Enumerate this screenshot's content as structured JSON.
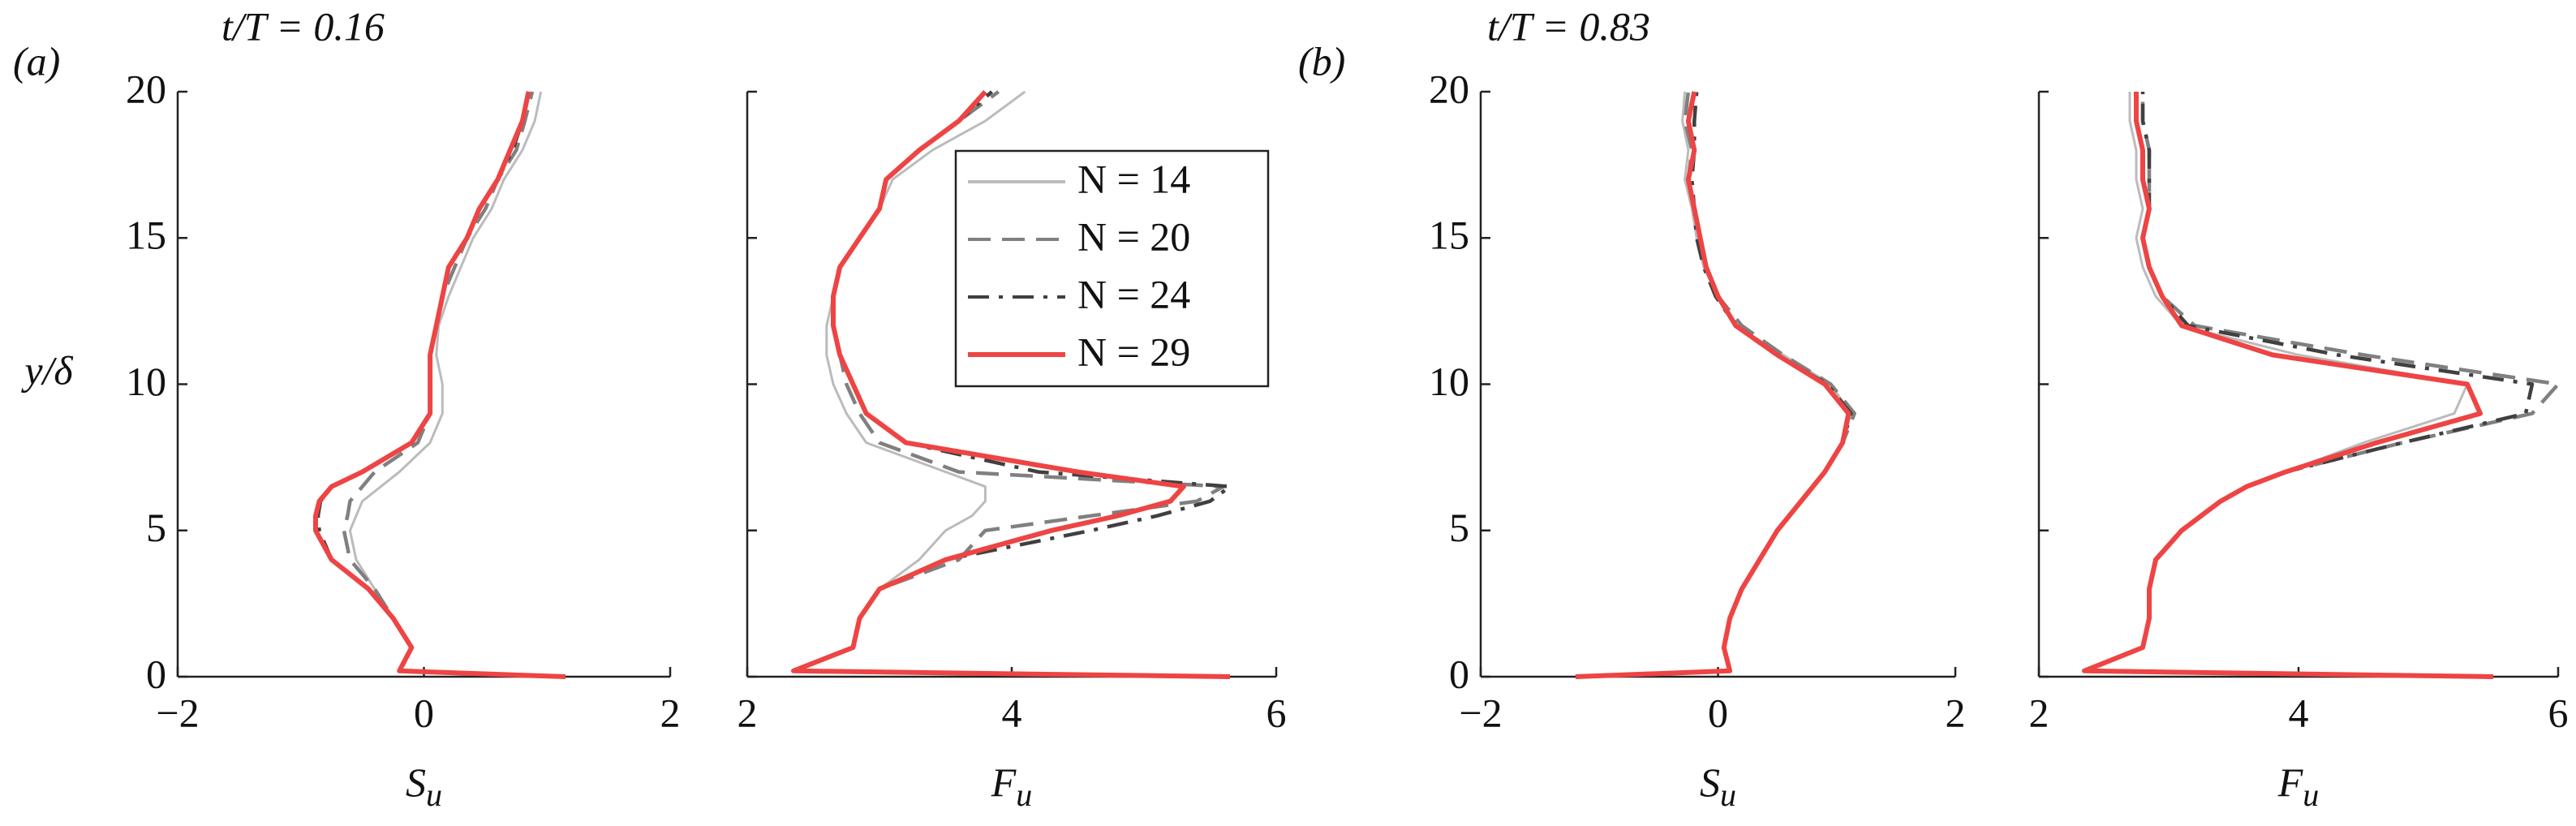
{
  "chart_data": [
    {
      "type": "line",
      "panel_label": "(a)",
      "title": "t/T = 0.16",
      "ylabel": "y/δ",
      "xlabel": "S",
      "xlabel_subscript": "u",
      "xlim": [
        -2,
        2
      ],
      "xticks": [
        {
          "value": -2,
          "label": "−2"
        },
        0,
        2
      ],
      "ylim": [
        0,
        20
      ],
      "yticks": [
        0,
        5,
        10,
        15,
        20
      ],
      "show_ytick_labels": true,
      "y": [
        0,
        0.2,
        1,
        2,
        3,
        4,
        5,
        5.5,
        6,
        6.5,
        7,
        8,
        9,
        10,
        11,
        12,
        13,
        14,
        15,
        16,
        17,
        18,
        19,
        20
      ],
      "series": [
        {
          "name": "N = 14",
          "color": "#bbbbbb",
          "linestyle": "solid",
          "values": [
            1.15,
            -0.2,
            -0.1,
            -0.25,
            -0.4,
            -0.55,
            -0.6,
            -0.55,
            -0.5,
            -0.35,
            -0.2,
            0.05,
            0.15,
            0.15,
            0.1,
            0.12,
            0.2,
            0.3,
            0.4,
            0.55,
            0.65,
            0.8,
            0.9,
            0.95
          ]
        },
        {
          "name": "N = 20",
          "color": "#808080",
          "linestyle": "dashed",
          "values": [
            1.15,
            -0.2,
            -0.1,
            -0.25,
            -0.4,
            -0.6,
            -0.65,
            -0.62,
            -0.6,
            -0.5,
            -0.4,
            -0.05,
            0.05,
            0.05,
            0.05,
            0.1,
            0.15,
            0.25,
            0.35,
            0.5,
            0.6,
            0.75,
            0.82,
            0.88
          ]
        },
        {
          "name": "N = 24",
          "color": "#404040",
          "linestyle": "dashdot",
          "values": [
            1.15,
            -0.2,
            -0.1,
            -0.25,
            -0.45,
            -0.75,
            -0.85,
            -0.86,
            -0.84,
            -0.75,
            -0.5,
            -0.1,
            0.05,
            0.05,
            0.05,
            0.1,
            0.15,
            0.2,
            0.35,
            0.45,
            0.6,
            0.72,
            0.8,
            0.85
          ]
        },
        {
          "name": "N = 29",
          "color": "#ee4444",
          "linestyle": "solid",
          "values": [
            1.15,
            -0.2,
            -0.1,
            -0.25,
            -0.45,
            -0.75,
            -0.88,
            -0.88,
            -0.85,
            -0.75,
            -0.5,
            -0.1,
            0.05,
            0.05,
            0.05,
            0.1,
            0.15,
            0.2,
            0.35,
            0.45,
            0.6,
            0.7,
            0.8,
            0.85
          ]
        }
      ]
    },
    {
      "type": "line",
      "xlabel": "F",
      "xlabel_subscript": "u",
      "xlim": [
        2,
        6
      ],
      "xticks": [
        2,
        4,
        6
      ],
      "ylim": [
        0,
        20
      ],
      "yticks": [
        0,
        5,
        10,
        15,
        20
      ],
      "show_ytick_labels": false,
      "legend": "upper right",
      "y": [
        0,
        0.2,
        1,
        2,
        3,
        4,
        5,
        5.5,
        6,
        6.5,
        7,
        8,
        9,
        10,
        11,
        12,
        13,
        14,
        15,
        16,
        17,
        18,
        19,
        20
      ],
      "series": [
        {
          "name": "N = 14",
          "color": "#bbbbbb",
          "linestyle": "solid",
          "values": [
            5.65,
            2.35,
            2.8,
            2.85,
            3.0,
            3.3,
            3.5,
            3.7,
            3.8,
            3.8,
            3.5,
            2.9,
            2.75,
            2.65,
            2.6,
            2.6,
            2.65,
            2.7,
            2.85,
            3.0,
            3.1,
            3.4,
            3.8,
            4.1
          ]
        },
        {
          "name": "N = 20",
          "color": "#808080",
          "linestyle": "dashed",
          "values": [
            5.65,
            2.35,
            2.8,
            2.85,
            3.0,
            3.6,
            3.8,
            4.6,
            5.4,
            5.6,
            3.6,
            3.0,
            2.85,
            2.75,
            2.7,
            2.65,
            2.65,
            2.7,
            2.85,
            3.0,
            3.05,
            3.3,
            3.6,
            3.9
          ]
        },
        {
          "name": "N = 24",
          "color": "#404040",
          "linestyle": "dashdot",
          "values": [
            5.65,
            2.35,
            2.8,
            2.85,
            3.0,
            3.5,
            4.6,
            5.1,
            5.5,
            5.65,
            4.2,
            3.2,
            2.9,
            2.8,
            2.7,
            2.65,
            2.65,
            2.7,
            2.85,
            3.0,
            3.05,
            3.3,
            3.6,
            3.85
          ]
        },
        {
          "name": "N = 29",
          "color": "#ee4444",
          "linestyle": "solid",
          "values": [
            5.65,
            2.35,
            2.8,
            2.85,
            3.0,
            3.5,
            4.3,
            4.8,
            5.2,
            5.3,
            4.5,
            3.2,
            2.9,
            2.8,
            2.7,
            2.65,
            2.65,
            2.7,
            2.85,
            3.0,
            3.05,
            3.3,
            3.6,
            3.8
          ]
        }
      ]
    },
    {
      "type": "line",
      "panel_label": "(b)",
      "title": "t/T = 0.83",
      "xlabel": "S",
      "xlabel_subscript": "u",
      "xlim": [
        -2,
        2
      ],
      "xticks": [
        {
          "value": -2,
          "label": "−2"
        },
        0,
        2
      ],
      "ylim": [
        0,
        20
      ],
      "yticks": [
        0,
        5,
        10,
        15,
        20
      ],
      "show_ytick_labels": true,
      "y": [
        0,
        0.2,
        1,
        2,
        3,
        4,
        5,
        5.5,
        6,
        6.5,
        7,
        8,
        9,
        10,
        11,
        12,
        13,
        14,
        15,
        16,
        17,
        18,
        19,
        20
      ],
      "series": [
        {
          "name": "N = 14",
          "color": "#bbbbbb",
          "linestyle": "solid",
          "values": [
            -1.2,
            0.1,
            0.05,
            0.1,
            0.2,
            0.35,
            0.5,
            0.6,
            0.7,
            0.8,
            0.9,
            1.05,
            1.12,
            0.95,
            0.55,
            0.15,
            0.0,
            -0.12,
            -0.18,
            -0.22,
            -0.28,
            -0.25,
            -0.3,
            -0.28
          ]
        },
        {
          "name": "N = 20",
          "color": "#808080",
          "linestyle": "dashed",
          "values": [
            -1.2,
            0.1,
            0.05,
            0.1,
            0.2,
            0.35,
            0.5,
            0.6,
            0.7,
            0.8,
            0.9,
            1.05,
            1.15,
            0.95,
            0.55,
            0.2,
            0.0,
            -0.1,
            -0.15,
            -0.2,
            -0.25,
            -0.22,
            -0.28,
            -0.25
          ]
        },
        {
          "name": "N = 24",
          "color": "#404040",
          "linestyle": "dashdot",
          "values": [
            -1.2,
            0.1,
            0.05,
            0.1,
            0.2,
            0.35,
            0.5,
            0.6,
            0.7,
            0.8,
            0.9,
            1.05,
            1.12,
            0.92,
            0.5,
            0.15,
            -0.02,
            -0.12,
            -0.18,
            -0.2,
            -0.22,
            -0.2,
            -0.2,
            -0.18
          ]
        },
        {
          "name": "N = 29",
          "color": "#ee4444",
          "linestyle": "solid",
          "values": [
            -1.2,
            0.1,
            0.05,
            0.1,
            0.2,
            0.35,
            0.5,
            0.6,
            0.7,
            0.8,
            0.9,
            1.05,
            1.1,
            0.9,
            0.5,
            0.15,
            0.0,
            -0.1,
            -0.15,
            -0.2,
            -0.25,
            -0.2,
            -0.25,
            -0.2
          ]
        }
      ]
    },
    {
      "type": "line",
      "xlabel": "F",
      "xlabel_subscript": "u",
      "xlim": [
        2,
        6
      ],
      "xticks": [
        2,
        4,
        6
      ],
      "ylim": [
        0,
        20
      ],
      "yticks": [
        0,
        5,
        10,
        15,
        20
      ],
      "show_ytick_labels": false,
      "y": [
        0,
        0.2,
        1,
        2,
        3,
        4,
        5,
        5.5,
        6,
        6.5,
        7,
        8,
        9,
        10,
        11,
        12,
        13,
        14,
        15,
        16,
        17,
        18,
        19,
        20
      ],
      "series": [
        {
          "name": "N = 14",
          "color": "#bbbbbb",
          "linestyle": "solid",
          "values": [
            5.5,
            2.35,
            2.8,
            2.85,
            2.85,
            2.9,
            3.1,
            3.25,
            3.4,
            3.6,
            3.9,
            4.5,
            5.2,
            5.3,
            4.0,
            3.1,
            2.9,
            2.8,
            2.75,
            2.8,
            2.75,
            2.75,
            2.7,
            2.7
          ]
        },
        {
          "name": "N = 20",
          "color": "#808080",
          "linestyle": "dashed",
          "values": [
            5.5,
            2.35,
            2.8,
            2.85,
            2.85,
            2.9,
            3.1,
            3.25,
            3.4,
            3.6,
            3.9,
            4.8,
            5.8,
            6.0,
            4.5,
            3.2,
            2.95,
            2.85,
            2.8,
            2.85,
            2.85,
            2.85,
            2.8,
            2.8
          ]
        },
        {
          "name": "N = 24",
          "color": "#404040",
          "linestyle": "dashdot",
          "values": [
            5.5,
            2.35,
            2.8,
            2.85,
            2.85,
            2.9,
            3.1,
            3.25,
            3.4,
            3.6,
            3.9,
            4.8,
            5.75,
            5.8,
            4.3,
            3.15,
            2.95,
            2.85,
            2.8,
            2.85,
            2.85,
            2.85,
            2.8,
            2.8
          ]
        },
        {
          "name": "N = 29",
          "color": "#ee4444",
          "linestyle": "solid",
          "values": [
            5.5,
            2.35,
            2.8,
            2.85,
            2.85,
            2.9,
            3.1,
            3.25,
            3.4,
            3.6,
            3.9,
            4.6,
            5.4,
            5.3,
            3.8,
            3.1,
            2.95,
            2.85,
            2.8,
            2.85,
            2.8,
            2.8,
            2.75,
            2.75
          ]
        }
      ]
    }
  ]
}
